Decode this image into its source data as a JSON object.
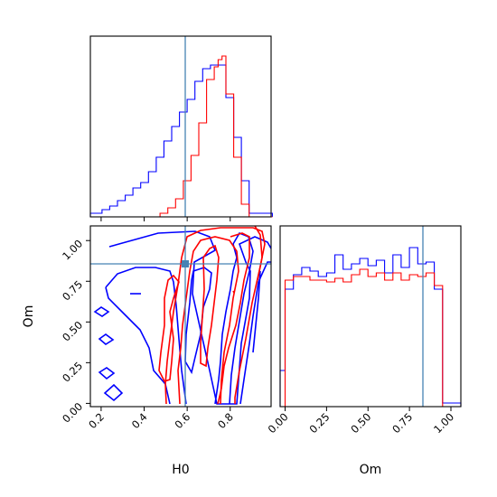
{
  "chart_data": {
    "type": "corner",
    "parameters": [
      "H0",
      "Om"
    ],
    "truth": {
      "H0": 0.59,
      "Om": 0.84
    },
    "colors": {
      "blue": "#0000ff",
      "red": "#ff0000",
      "truth": "#4682b4"
    },
    "panels": [
      {
        "id": "H0-marginal",
        "type": "histogram-step",
        "x_range": [
          0.15,
          0.99
        ],
        "y_range": [
          0,
          1.0
        ],
        "bin_edges": [
          0.15,
          0.168,
          0.186,
          0.204,
          0.222,
          0.24,
          0.258,
          0.276,
          0.294,
          0.312,
          0.33,
          0.348,
          0.366,
          0.384,
          0.402,
          0.42,
          0.438,
          0.456,
          0.474,
          0.492,
          0.51,
          0.528,
          0.546,
          0.564,
          0.582,
          0.6,
          0.618,
          0.636,
          0.654,
          0.672,
          0.69,
          0.708,
          0.726,
          0.744,
          0.762,
          0.78,
          0.798,
          0.816,
          0.834,
          0.852,
          0.87,
          0.888,
          0.906,
          0.924,
          0.942,
          0.96,
          0.978,
          0.996
        ],
        "series": [
          {
            "color": "blue",
            "values": [
              0.02,
              0.02,
              0.02,
              0.04,
              0.04,
              0.06,
              0.06,
              0.09,
              0.09,
              0.12,
              0.12,
              0.16,
              0.16,
              0.19,
              0.19,
              0.25,
              0.25,
              0.33,
              0.33,
              0.42,
              0.42,
              0.5,
              0.5,
              0.58,
              0.58,
              0.65,
              0.65,
              0.75,
              0.75,
              0.82,
              0.82,
              0.84,
              0.84,
              0.84,
              0.84,
              0.66,
              0.66,
              0.44,
              0.44,
              0.2,
              0.2,
              0.02,
              0.02,
              0.02,
              0.02,
              0.02,
              0.02
            ]
          },
          {
            "color": "red",
            "values": [
              0,
              0,
              0,
              0,
              0,
              0,
              0,
              0,
              0,
              0,
              0,
              0,
              0,
              0,
              0,
              0,
              0,
              0,
              0.02,
              0.02,
              0.05,
              0.05,
              0.1,
              0.1,
              0.2,
              0.2,
              0.34,
              0.34,
              0.52,
              0.52,
              0.76,
              0.76,
              0.83,
              0.87,
              0.89,
              0.68,
              0.68,
              0.33,
              0.33,
              0.07,
              0.07,
              0,
              0,
              0,
              0,
              0,
              0
            ]
          }
        ],
        "xlabel": "",
        "ylabel": ""
      },
      {
        "id": "H0-Om-joint",
        "type": "contour",
        "x_range": [
          0.15,
          0.99
        ],
        "y_range": [
          -0.02,
          1.09
        ],
        "x_ticks": [
          "0.2",
          "0.4",
          "0.6",
          "0.8"
        ],
        "y_ticks": [
          "0.00",
          "0.25",
          "0.50",
          "0.75",
          "1.00"
        ],
        "xlabel": "H0",
        "ylabel": "Om"
      },
      {
        "id": "Om-marginal",
        "type": "histogram-step",
        "x_range": [
          -0.03,
          1.06
        ],
        "y_range": [
          0,
          1.0
        ],
        "x_ticks": [
          "0.00",
          "0.25",
          "0.50",
          "0.75",
          "1.00"
        ],
        "bin_edges": [
          -0.03,
          0.0,
          0.05,
          0.1,
          0.15,
          0.2,
          0.25,
          0.3,
          0.35,
          0.4,
          0.45,
          0.5,
          0.55,
          0.6,
          0.65,
          0.7,
          0.75,
          0.8,
          0.85,
          0.9,
          0.95,
          1.0,
          1.06
        ],
        "series": [
          {
            "color": "blue",
            "values": [
              0.2,
              0.65,
              0.73,
              0.77,
              0.75,
              0.72,
              0.74,
              0.84,
              0.76,
              0.79,
              0.82,
              0.78,
              0.81,
              0.74,
              0.84,
              0.77,
              0.88,
              0.79,
              0.8,
              0.65,
              0.02,
              0.02
            ]
          },
          {
            "color": "red",
            "values": [
              0,
              0.7,
              0.72,
              0.72,
              0.7,
              0.7,
              0.69,
              0.71,
              0.69,
              0.73,
              0.76,
              0.72,
              0.74,
              0.7,
              0.74,
              0.7,
              0.73,
              0.72,
              0.74,
              0.67,
              0,
              0
            ]
          }
        ],
        "xlabel": "Om",
        "ylabel": ""
      }
    ]
  }
}
